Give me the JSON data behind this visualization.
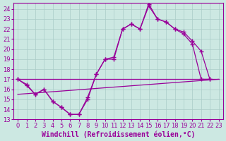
{
  "background_color": "#cce8e2",
  "line_color": "#990099",
  "grid_color": "#aaccc8",
  "xlabel": "Windchill (Refroidissement éolien,°C)",
  "xlim": [
    -0.5,
    23.5
  ],
  "ylim": [
    13,
    24.6
  ],
  "yticks": [
    13,
    14,
    15,
    16,
    17,
    18,
    19,
    20,
    21,
    22,
    23,
    24
  ],
  "xticks": [
    0,
    1,
    2,
    3,
    4,
    5,
    6,
    7,
    8,
    9,
    10,
    11,
    12,
    13,
    14,
    15,
    16,
    17,
    18,
    19,
    20,
    21,
    22,
    23
  ],
  "tick_fontsize": 6,
  "label_fontsize": 7,
  "line1_x": [
    0,
    1,
    2,
    3,
    4,
    5,
    6,
    7,
    8,
    9,
    10,
    11,
    12,
    13,
    14,
    15,
    16,
    17,
    18,
    19,
    20,
    21,
    22
  ],
  "line1_y": [
    17.0,
    16.5,
    15.5,
    16.0,
    14.8,
    14.2,
    13.5,
    13.5,
    15.0,
    17.5,
    19.0,
    19.2,
    22.0,
    22.5,
    22.0,
    24.5,
    23.0,
    22.7,
    22.0,
    21.7,
    20.8,
    19.8,
    17.0
  ],
  "line2_x": [
    0,
    1,
    2,
    3,
    4,
    5,
    6,
    7,
    8,
    9,
    10,
    11,
    12,
    13,
    14,
    15,
    16,
    17,
    18,
    19,
    20,
    21,
    22
  ],
  "line2_y": [
    17.0,
    16.4,
    15.5,
    16.0,
    14.8,
    14.2,
    13.5,
    13.5,
    15.2,
    17.5,
    19.0,
    19.0,
    22.0,
    22.5,
    22.0,
    24.3,
    23.0,
    22.7,
    22.0,
    21.5,
    20.5,
    17.0,
    17.0
  ],
  "line3_x": [
    0,
    23
  ],
  "line3_y": [
    17.0,
    17.0
  ],
  "line4_x": [
    0,
    23
  ],
  "line4_y": [
    15.5,
    17.0
  ]
}
